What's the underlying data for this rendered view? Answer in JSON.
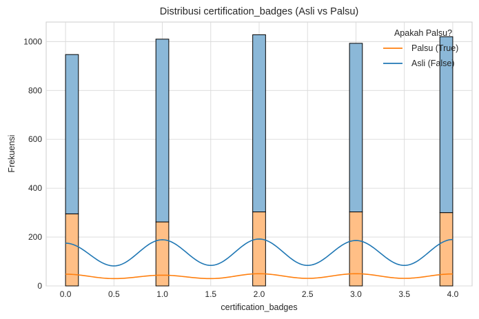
{
  "chart_data": {
    "type": "bar",
    "subtype": "stacked-histogram-with-kde",
    "title": "Distribusi certification_badges (Asli vs Palsu)",
    "xlabel": "certification_badges",
    "ylabel": "Frekuensi",
    "xlim": [
      -0.2,
      4.2
    ],
    "ylim": [
      0,
      1080
    ],
    "xticks": [
      "0.0",
      "0.5",
      "1.0",
      "1.5",
      "2.0",
      "2.5",
      "3.0",
      "3.5",
      "4.0"
    ],
    "yticks": [
      "0",
      "200",
      "400",
      "600",
      "800",
      "1000"
    ],
    "grid": true,
    "legend": {
      "title": "Apakah Palsu?",
      "placement": "top-right"
    },
    "bin_width": 0.133,
    "categories": [
      0,
      1,
      2,
      3,
      4
    ],
    "series": [
      {
        "name": "Palsu (True)",
        "color": "#ff7f0e",
        "values": [
          295,
          262,
          303,
          303,
          300
        ],
        "kde": [
          [
            0.0,
            48
          ],
          [
            0.5,
            30
          ],
          [
            1.0,
            44
          ],
          [
            1.5,
            30
          ],
          [
            2.0,
            50
          ],
          [
            2.5,
            31
          ],
          [
            3.0,
            50
          ],
          [
            3.5,
            31
          ],
          [
            4.0,
            49
          ]
        ]
      },
      {
        "name": "Asli (False)",
        "color": "#1f77b4",
        "values": [
          652,
          748,
          725,
          690,
          720
        ],
        "kde": [
          [
            0.0,
            175
          ],
          [
            0.5,
            82
          ],
          [
            1.0,
            189
          ],
          [
            1.5,
            84
          ],
          [
            2.0,
            192
          ],
          [
            2.5,
            84
          ],
          [
            3.0,
            186
          ],
          [
            3.5,
            84
          ],
          [
            4.0,
            190
          ]
        ]
      }
    ]
  }
}
